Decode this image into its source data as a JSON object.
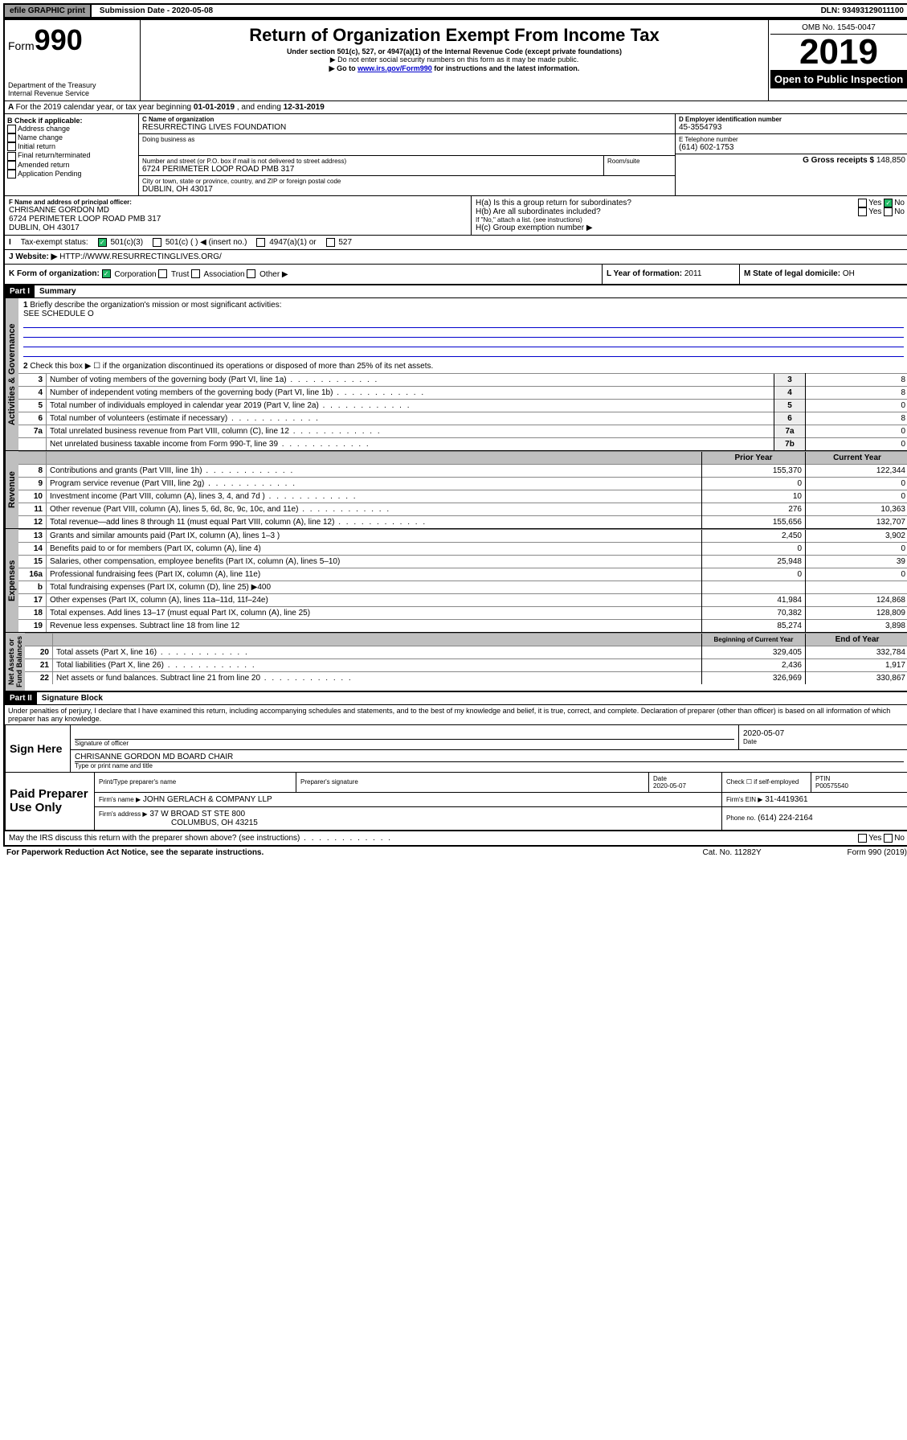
{
  "topbar": {
    "efile": "efile GRAPHIC print",
    "sub_lbl": "Submission Date - 2020-05-08",
    "dln": "DLN: 93493129011100"
  },
  "header": {
    "form_word": "Form",
    "form_num": "990",
    "dept": "Department of the Treasury",
    "irs": "Internal Revenue Service",
    "title": "Return of Organization Exempt From Income Tax",
    "sub1": "Under section 501(c), 527, or 4947(a)(1) of the Internal Revenue Code (except private foundations)",
    "sub2": "▶ Do not enter social security numbers on this form as it may be made public.",
    "sub3_pre": "▶ Go to ",
    "sub3_link": "www.irs.gov/Form990",
    "sub3_post": " for instructions and the latest information.",
    "omb": "OMB No. 1545-0047",
    "year": "2019",
    "open": "Open to Public Inspection"
  },
  "A": {
    "text_pre": "For the 2019 calendar year, or tax year beginning ",
    "begin": "01-01-2019",
    "mid": " , and ending ",
    "end": "12-31-2019"
  },
  "B": {
    "hdr": "B Check if applicable:",
    "items": [
      "Address change",
      "Name change",
      "Initial return",
      "Final return/terminated",
      "Amended return",
      "Application Pending"
    ]
  },
  "C": {
    "name_lbl": "C Name of organization",
    "name": "RESURRECTING LIVES FOUNDATION",
    "dba_lbl": "Doing business as",
    "addr_lbl": "Number and street (or P.O. box if mail is not delivered to street address)",
    "room_lbl": "Room/suite",
    "addr": "6724 PERIMETER LOOP ROAD PMB 317",
    "city_lbl": "City or town, state or province, country, and ZIP or foreign postal code",
    "city": "DUBLIN, OH  43017"
  },
  "D": {
    "lbl": "D Employer identification number",
    "val": "45-3554793"
  },
  "E": {
    "lbl": "E Telephone number",
    "val": "(614) 602-1753"
  },
  "G": {
    "lbl": "G Gross receipts $",
    "val": "148,850"
  },
  "F": {
    "lbl": "F  Name and address of principal officer:",
    "name": "CHRISANNE GORDON MD",
    "addr1": "6724 PERIMETER LOOP ROAD PMB 317",
    "addr2": "DUBLIN, OH  43017"
  },
  "H": {
    "a": "H(a)  Is this a group return for subordinates?",
    "b": "H(b)  Are all subordinates included?",
    "b_note": "If \"No,\" attach a list. (see instructions)",
    "c": "H(c)  Group exemption number ▶"
  },
  "I": {
    "lbl": "Tax-exempt status:",
    "opts": [
      "501(c)(3)",
      "501(c) (   ) ◀ (insert no.)",
      "4947(a)(1) or",
      "527"
    ]
  },
  "J": {
    "lbl": "Website: ▶",
    "val": "HTTP://WWW.RESURRECTINGLIVES.ORG/"
  },
  "K": {
    "lbl": "K Form of organization:",
    "opts": [
      "Corporation",
      "Trust",
      "Association",
      "Other ▶"
    ]
  },
  "L": {
    "lbl": "L Year of formation:",
    "val": "2011"
  },
  "M": {
    "lbl": "M State of legal domicile:",
    "val": "OH"
  },
  "part1": {
    "hdr": "Part I",
    "title": "Summary",
    "q1": "Briefly describe the organization's mission or most significant activities:",
    "q1_ans": "SEE SCHEDULE O",
    "q2": "Check this box ▶ ☐  if the organization discontinued its operations or disposed of more than 25% of its net assets.",
    "lines_gov": [
      {
        "n": "3",
        "t": "Number of voting members of the governing body (Part VI, line 1a)",
        "box": "3",
        "v": "8"
      },
      {
        "n": "4",
        "t": "Number of independent voting members of the governing body (Part VI, line 1b)",
        "box": "4",
        "v": "8"
      },
      {
        "n": "5",
        "t": "Total number of individuals employed in calendar year 2019 (Part V, line 2a)",
        "box": "5",
        "v": "0"
      },
      {
        "n": "6",
        "t": "Total number of volunteers (estimate if necessary)",
        "box": "6",
        "v": "8"
      },
      {
        "n": "7a",
        "t": "Total unrelated business revenue from Part VIII, column (C), line 12",
        "box": "7a",
        "v": "0"
      },
      {
        "n": "",
        "t": "Net unrelated business taxable income from Form 990-T, line 39",
        "box": "7b",
        "v": "0"
      }
    ],
    "col_prior": "Prior Year",
    "col_curr": "Current Year",
    "rev": [
      {
        "n": "8",
        "t": "Contributions and grants (Part VIII, line 1h)",
        "p": "155,370",
        "c": "122,344"
      },
      {
        "n": "9",
        "t": "Program service revenue (Part VIII, line 2g)",
        "p": "0",
        "c": "0"
      },
      {
        "n": "10",
        "t": "Investment income (Part VIII, column (A), lines 3, 4, and 7d )",
        "p": "10",
        "c": "0"
      },
      {
        "n": "11",
        "t": "Other revenue (Part VIII, column (A), lines 5, 6d, 8c, 9c, 10c, and 11e)",
        "p": "276",
        "c": "10,363"
      },
      {
        "n": "12",
        "t": "Total revenue—add lines 8 through 11 (must equal Part VIII, column (A), line 12)",
        "p": "155,656",
        "c": "132,707"
      }
    ],
    "exp": [
      {
        "n": "13",
        "t": "Grants and similar amounts paid (Part IX, column (A), lines 1–3 )",
        "p": "2,450",
        "c": "3,902"
      },
      {
        "n": "14",
        "t": "Benefits paid to or for members (Part IX, column (A), line 4)",
        "p": "0",
        "c": "0"
      },
      {
        "n": "15",
        "t": "Salaries, other compensation, employee benefits (Part IX, column (A), lines 5–10)",
        "p": "25,948",
        "c": "39"
      },
      {
        "n": "16a",
        "t": "Professional fundraising fees (Part IX, column (A), line 11e)",
        "p": "0",
        "c": "0"
      },
      {
        "n": "b",
        "t": "Total fundraising expenses (Part IX, column (D), line 25) ▶400",
        "p": "",
        "c": "",
        "gray": true
      },
      {
        "n": "17",
        "t": "Other expenses (Part IX, column (A), lines 11a–11d, 11f–24e)",
        "p": "41,984",
        "c": "124,868"
      },
      {
        "n": "18",
        "t": "Total expenses. Add lines 13–17 (must equal Part IX, column (A), line 25)",
        "p": "70,382",
        "c": "128,809"
      },
      {
        "n": "19",
        "t": "Revenue less expenses. Subtract line 18 from line 12",
        "p": "85,274",
        "c": "3,898"
      }
    ],
    "col_beg": "Beginning of Current Year",
    "col_end": "End of Year",
    "net": [
      {
        "n": "20",
        "t": "Total assets (Part X, line 16)",
        "p": "329,405",
        "c": "332,784"
      },
      {
        "n": "21",
        "t": "Total liabilities (Part X, line 26)",
        "p": "2,436",
        "c": "1,917"
      },
      {
        "n": "22",
        "t": "Net assets or fund balances. Subtract line 21 from line 20",
        "p": "326,969",
        "c": "330,867"
      }
    ]
  },
  "part2": {
    "hdr": "Part II",
    "title": "Signature Block",
    "jurat": "Under penalties of perjury, I declare that I have examined this return, including accompanying schedules and statements, and to the best of my knowledge and belief, it is true, correct, and complete. Declaration of preparer (other than officer) is based on all information of which preparer has any knowledge."
  },
  "sign": {
    "here": "Sign Here",
    "sig_lbl": "Signature of officer",
    "date": "2020-05-07",
    "date_lbl": "Date",
    "name": "CHRISANNE GORDON MD  BOARD CHAIR",
    "name_lbl": "Type or print name and title"
  },
  "paid": {
    "hdr": "Paid Preparer Use Only",
    "c1": "Print/Type preparer's name",
    "c2": "Preparer's signature",
    "c3": "Date",
    "c3v": "2020-05-07",
    "c4": "Check ☐ if self-employed",
    "c5": "PTIN",
    "c5v": "P00575540",
    "firm_lbl": "Firm's name    ▶",
    "firm": "JOHN GERLACH & COMPANY LLP",
    "ein_lbl": "Firm's EIN ▶",
    "ein": "31-4419361",
    "addr_lbl": "Firm's address ▶",
    "addr1": "37 W BROAD ST STE 800",
    "addr2": "COLUMBUS, OH  43215",
    "ph_lbl": "Phone no.",
    "ph": "(614) 224-2164"
  },
  "footer": {
    "q": "May the IRS discuss this return with the preparer shown above? (see instructions)",
    "pra": "For Paperwork Reduction Act Notice, see the separate instructions.",
    "cat": "Cat. No. 11282Y",
    "form": "Form 990 (2019)"
  },
  "yn": {
    "yes": "Yes",
    "no": "No"
  }
}
